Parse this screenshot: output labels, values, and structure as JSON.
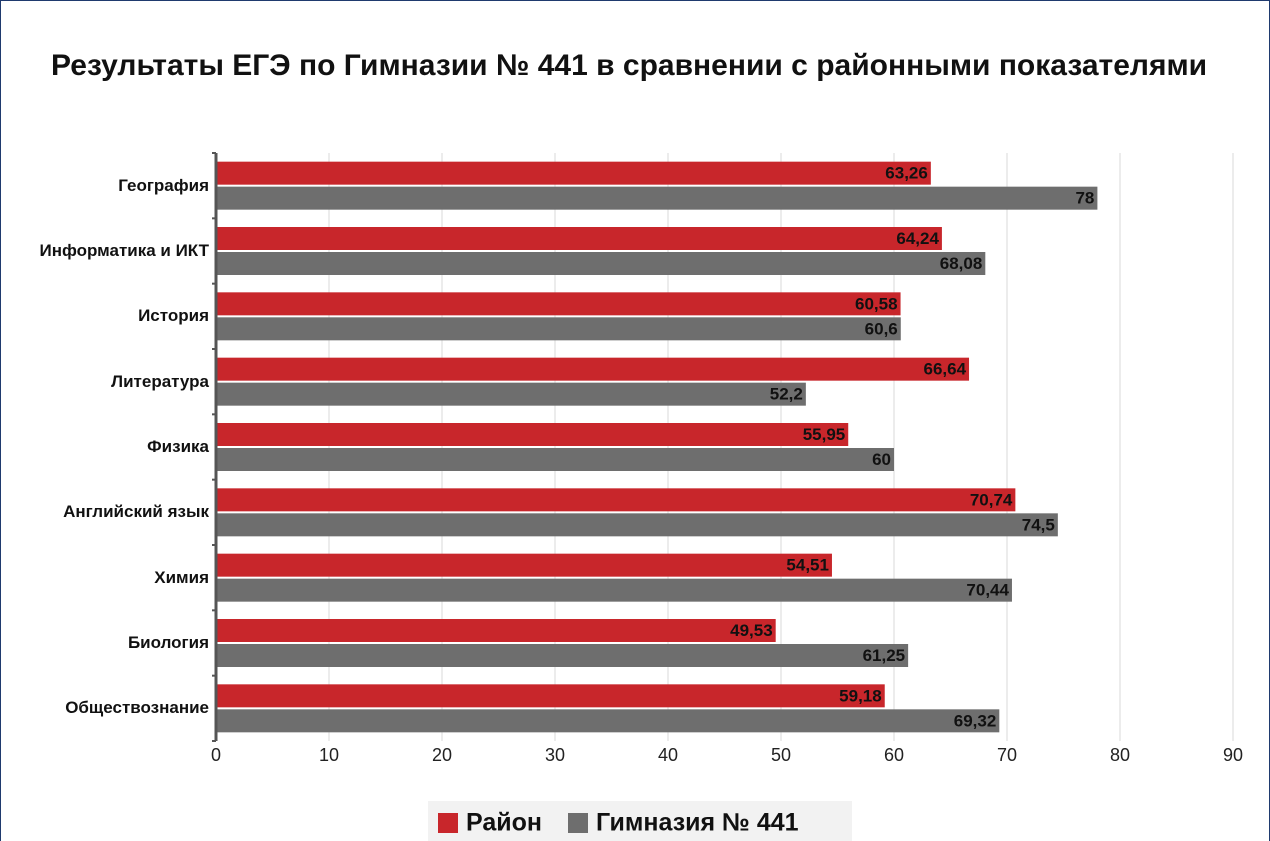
{
  "chart_data": {
    "type": "hbar",
    "title": "Результаты ЕГЭ по Гимназии № 441 в сравнении с районными показателями",
    "categories": [
      "География",
      "Информатика и ИКТ",
      "История",
      "Литература",
      "Физика",
      "Английский язык",
      "Химия",
      "Биология",
      "Обществознание"
    ],
    "series": [
      {
        "name": "Район",
        "color": "#c8262b",
        "values": [
          63.26,
          64.24,
          60.58,
          66.64,
          55.95,
          70.74,
          54.51,
          49.53,
          59.18
        ],
        "value_labels": [
          "63,26",
          "64,24",
          "60,58",
          "66,64",
          "55,95",
          "70,74",
          "54,51",
          "49,53",
          "59,18"
        ]
      },
      {
        "name": "Гимназия № 441",
        "color": "#6e6e6e",
        "values": [
          78,
          68.08,
          60.6,
          52.2,
          60,
          74.5,
          70.44,
          61.25,
          69.32
        ],
        "value_labels": [
          "78",
          "68,08",
          "60,6",
          "52,2",
          "60",
          "74,5",
          "70,44",
          "61,25",
          "69,32"
        ]
      }
    ],
    "xlim": [
      0,
      90
    ],
    "xticks": [
      0,
      10,
      20,
      30,
      40,
      50,
      60,
      70,
      80,
      90
    ],
    "grid": true,
    "legend": "bottom"
  }
}
